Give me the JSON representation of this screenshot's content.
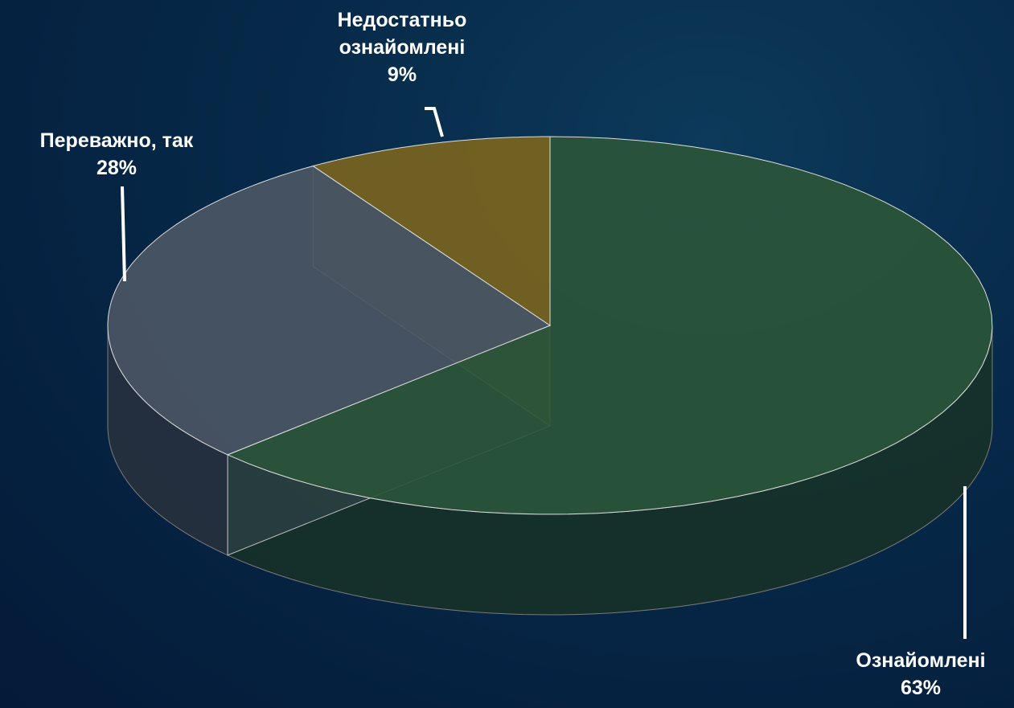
{
  "chart_data": {
    "type": "pie3d",
    "categories": [
      "Ознайомлені",
      "Переважно, так",
      "Недостатньо ознайомлені"
    ],
    "values": [
      63,
      28,
      9
    ],
    "value_labels": [
      "63%",
      "28%",
      "9%"
    ],
    "colors": [
      "#2b5538",
      "#4b5664",
      "#7a641e"
    ]
  }
}
